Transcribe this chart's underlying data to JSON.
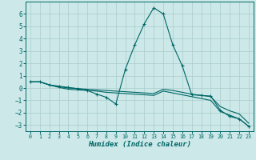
{
  "xlabel": "Humidex (Indice chaleur)",
  "background_color": "#cce8e8",
  "grid_color": "#aacccc",
  "line_color": "#006666",
  "xlim": [
    -0.5,
    23.5
  ],
  "ylim": [
    -3.5,
    7.0
  ],
  "yticks": [
    -3,
    -2,
    -1,
    0,
    1,
    2,
    3,
    4,
    5,
    6
  ],
  "xticks": [
    0,
    1,
    2,
    3,
    4,
    5,
    6,
    7,
    8,
    9,
    10,
    11,
    12,
    13,
    14,
    15,
    16,
    17,
    18,
    19,
    20,
    21,
    22,
    23
  ],
  "series": [
    {
      "x": [
        0,
        1,
        2,
        3,
        4,
        5,
        6,
        7,
        8,
        9,
        10,
        11,
        12,
        13,
        14,
        15,
        16,
        17,
        18,
        19,
        20,
        21,
        22,
        23
      ],
      "y": [
        0.5,
        0.5,
        0.25,
        0.15,
        0.05,
        -0.05,
        -0.2,
        -0.5,
        -0.75,
        -1.3,
        1.5,
        3.5,
        5.2,
        6.5,
        6.0,
        3.5,
        1.8,
        -0.55,
        -0.6,
        -0.65,
        -1.8,
        -2.3,
        -2.5,
        -3.1
      ],
      "markers": true
    },
    {
      "x": [
        0,
        1,
        2,
        3,
        4,
        5,
        6,
        7,
        8,
        9,
        10,
        11,
        12,
        13,
        14,
        15,
        16,
        17,
        18,
        19,
        20,
        21,
        22,
        23
      ],
      "y": [
        0.5,
        0.5,
        0.25,
        0.1,
        0.0,
        -0.05,
        -0.1,
        -0.15,
        -0.2,
        -0.25,
        -0.3,
        -0.35,
        -0.4,
        -0.45,
        -0.1,
        -0.2,
        -0.35,
        -0.5,
        -0.6,
        -0.7,
        -1.5,
        -1.85,
        -2.1,
        -2.85
      ],
      "markers": false
    },
    {
      "x": [
        0,
        1,
        2,
        3,
        4,
        5,
        6,
        7,
        8,
        9,
        10,
        11,
        12,
        13,
        14,
        15,
        16,
        17,
        18,
        19,
        20,
        21,
        22,
        23
      ],
      "y": [
        0.5,
        0.5,
        0.25,
        0.05,
        -0.1,
        -0.15,
        -0.2,
        -0.25,
        -0.35,
        -0.4,
        -0.45,
        -0.5,
        -0.55,
        -0.6,
        -0.25,
        -0.4,
        -0.55,
        -0.7,
        -0.85,
        -1.0,
        -1.9,
        -2.2,
        -2.5,
        -3.1
      ],
      "markers": false
    }
  ]
}
